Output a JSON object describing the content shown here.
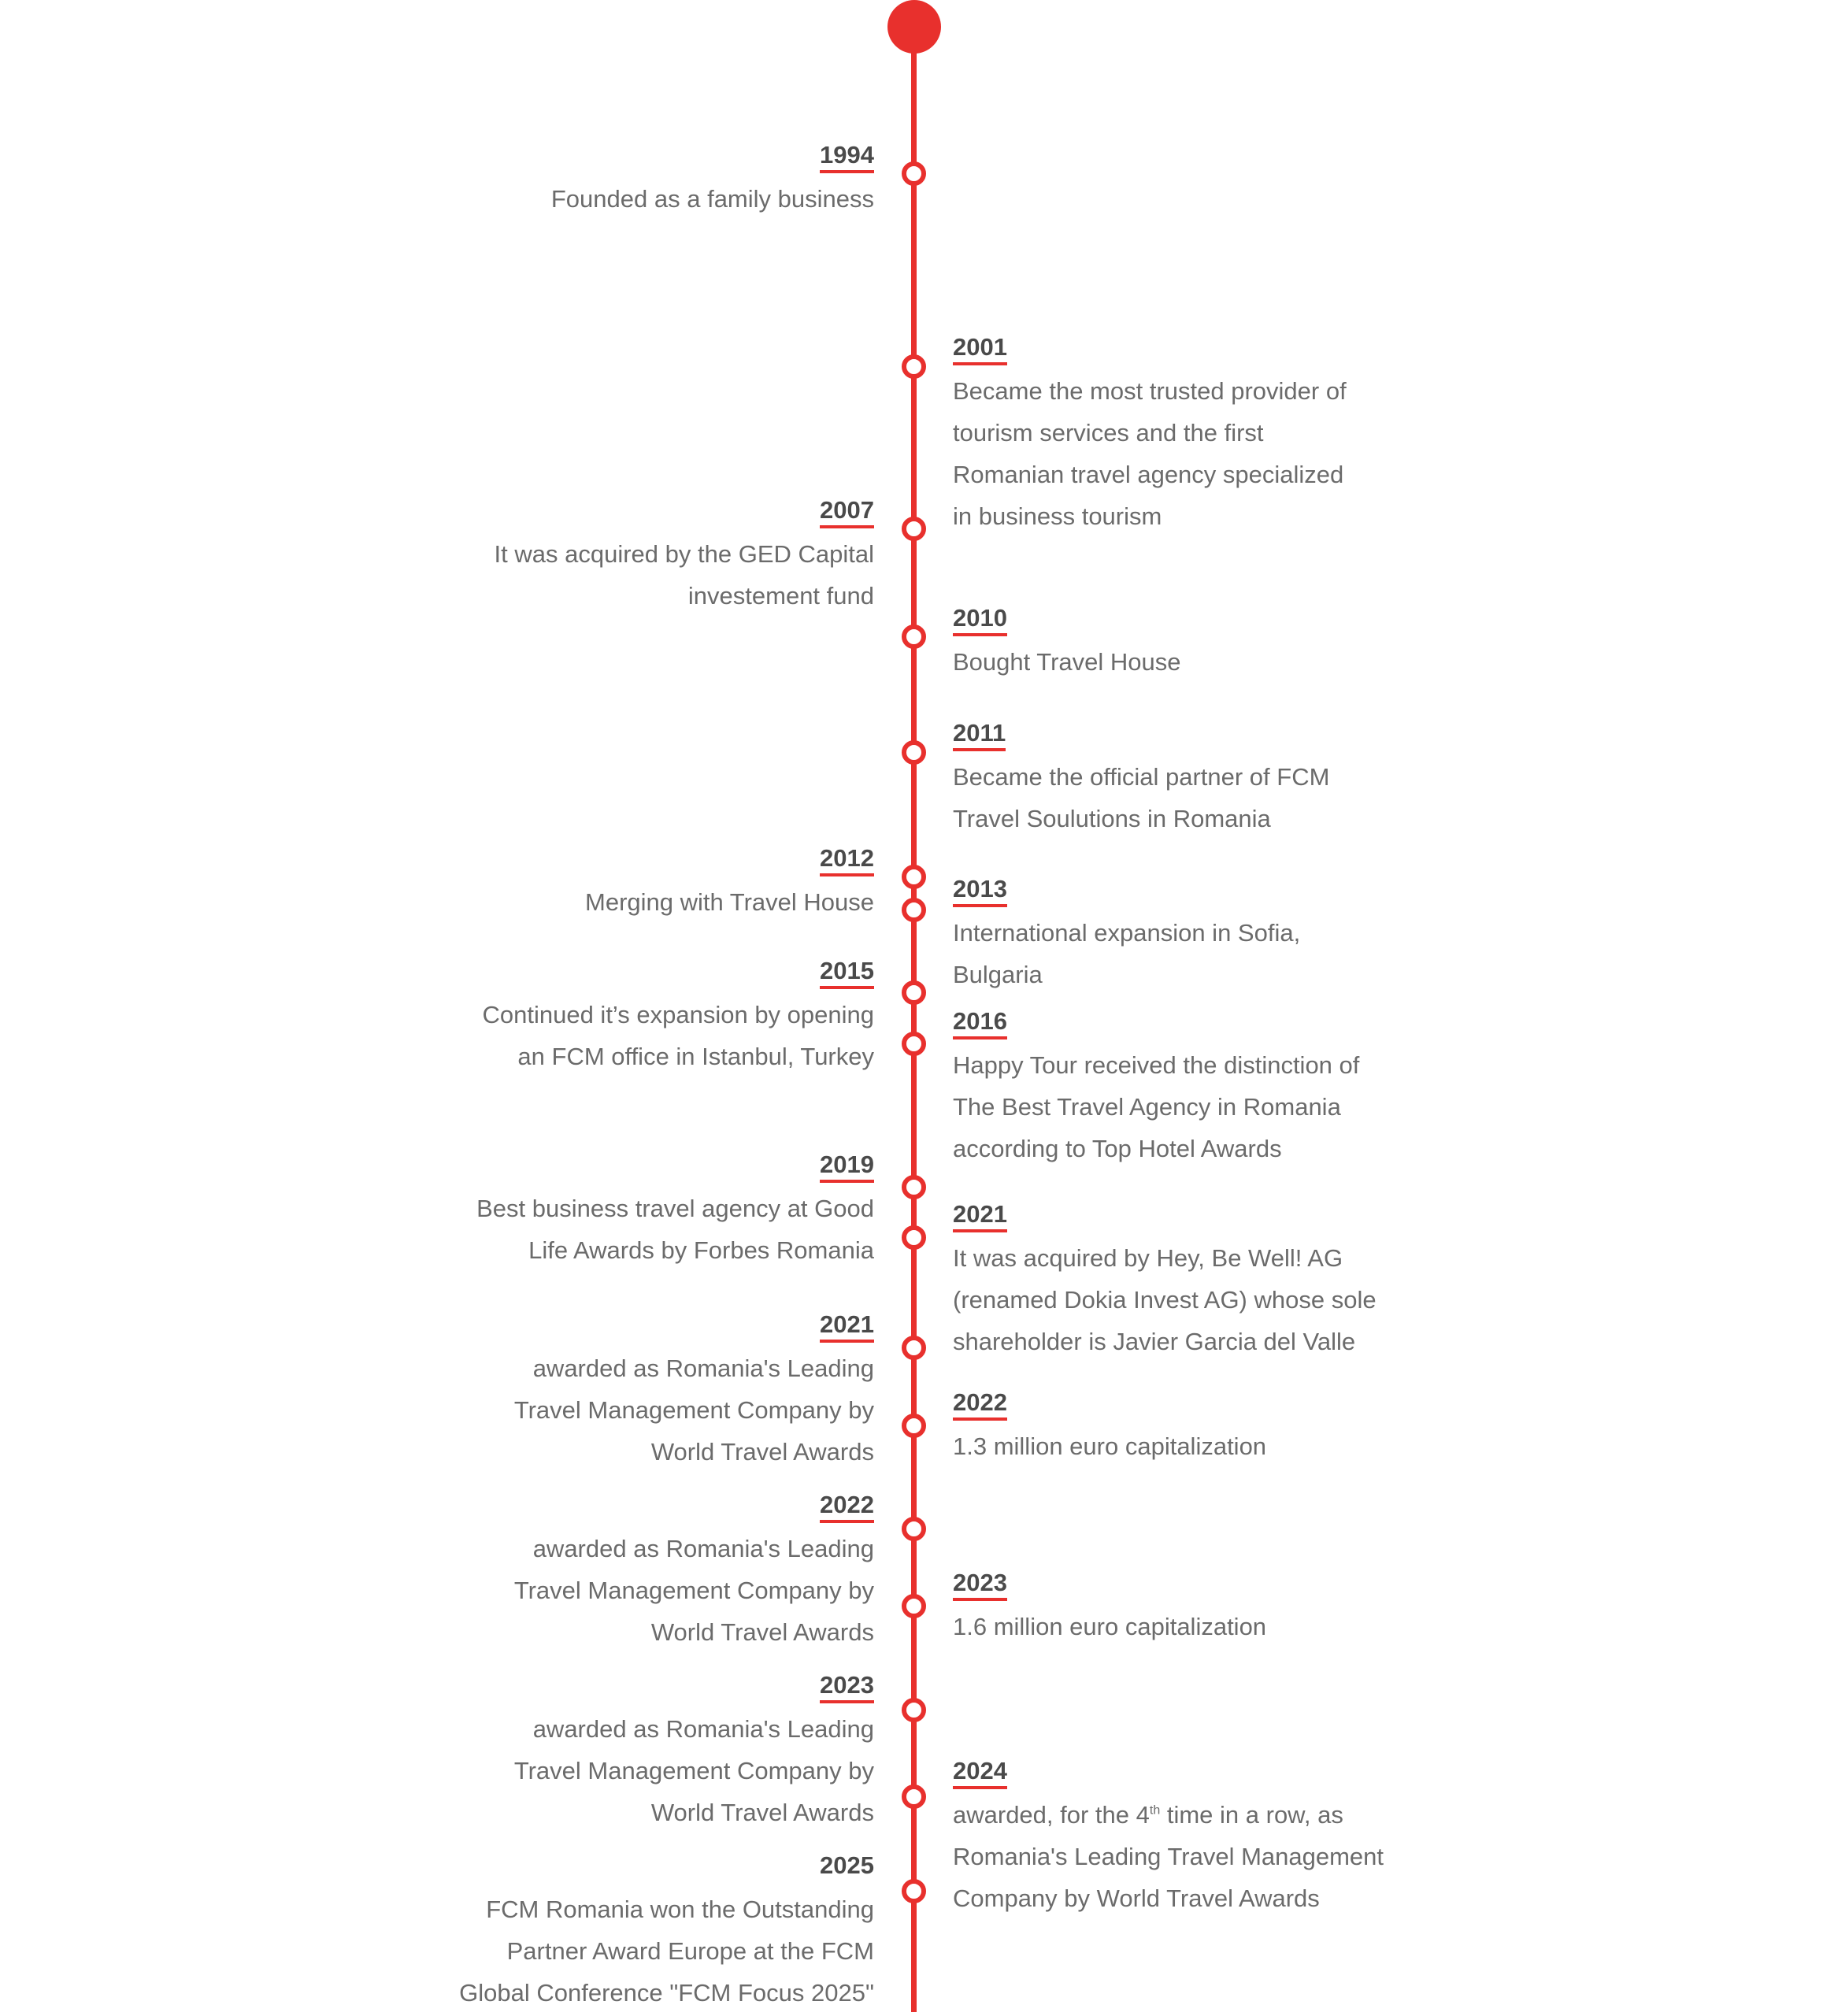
{
  "colors": {
    "accent": "#e8302d",
    "year_text": "#4a4a4a",
    "desc_text": "#6b6b6b",
    "background": "#ffffff"
  },
  "events": [
    {
      "side": "left",
      "year": "1994",
      "text": "Founded as a family business"
    },
    {
      "side": "right",
      "year": "2001",
      "text": "Became the most trusted provider of\ntourism services and the first\nRomanian travel agency specialized\nin business tourism"
    },
    {
      "side": "left",
      "year": "2007",
      "text": "It was acquired by the GED Capital\ninvestement fund"
    },
    {
      "side": "right",
      "year": "2010",
      "text": "Bought Travel House"
    },
    {
      "side": "right",
      "year": "2011",
      "text": "Became the official partner of FCM\nTravel Soulutions in Romania"
    },
    {
      "side": "left",
      "year": "2012",
      "text": "Merging with Travel House"
    },
    {
      "side": "right",
      "year": "2013",
      "text": "International expansion in Sofia,\nBulgaria"
    },
    {
      "side": "left",
      "year": "2015",
      "text": "Continued it’s expansion by opening\nan FCM office in Istanbul, Turkey"
    },
    {
      "side": "right",
      "year": "2016",
      "text": "Happy Tour received the distinction of\nThe Best Travel Agency in Romania\naccording to Top Hotel Awards"
    },
    {
      "side": "left",
      "year": "2019",
      "text": "Best business travel agency at Good\nLife Awards by Forbes Romania"
    },
    {
      "side": "right",
      "year": "2021",
      "text": "It was acquired by Hey, Be Well! AG\n(renamed Dokia Invest AG) whose sole\nshareholder is Javier Garcia del Valle"
    },
    {
      "side": "left",
      "year": "2021",
      "text": "awarded as Romania's Leading\nTravel Management Company by\nWorld Travel Awards"
    },
    {
      "side": "right",
      "year": "2022",
      "text": "1.3 million euro capitalization"
    },
    {
      "side": "left",
      "year": "2022",
      "text": "awarded as Romania's Leading\nTravel Management Company by\nWorld Travel Awards"
    },
    {
      "side": "right",
      "year": "2023",
      "text": "1.6 million euro capitalization"
    },
    {
      "side": "left",
      "year": "2023",
      "text": "awarded as Romania's Leading\nTravel Management Company by\nWorld Travel Awards"
    },
    {
      "side": "right",
      "year": "2024",
      "text_before": "awarded, for the 4",
      "text_sup": "th",
      "text_after": " time in a row,  as\nRomania's Leading Travel Management\nCompany by World Travel Awards"
    },
    {
      "side": "left",
      "year": "2025",
      "underline": false,
      "text": "FCM Romania won the Outstanding\nPartner Award Europe at the FCM\nGlobal Conference \"FCM Focus 2025\""
    }
  ]
}
